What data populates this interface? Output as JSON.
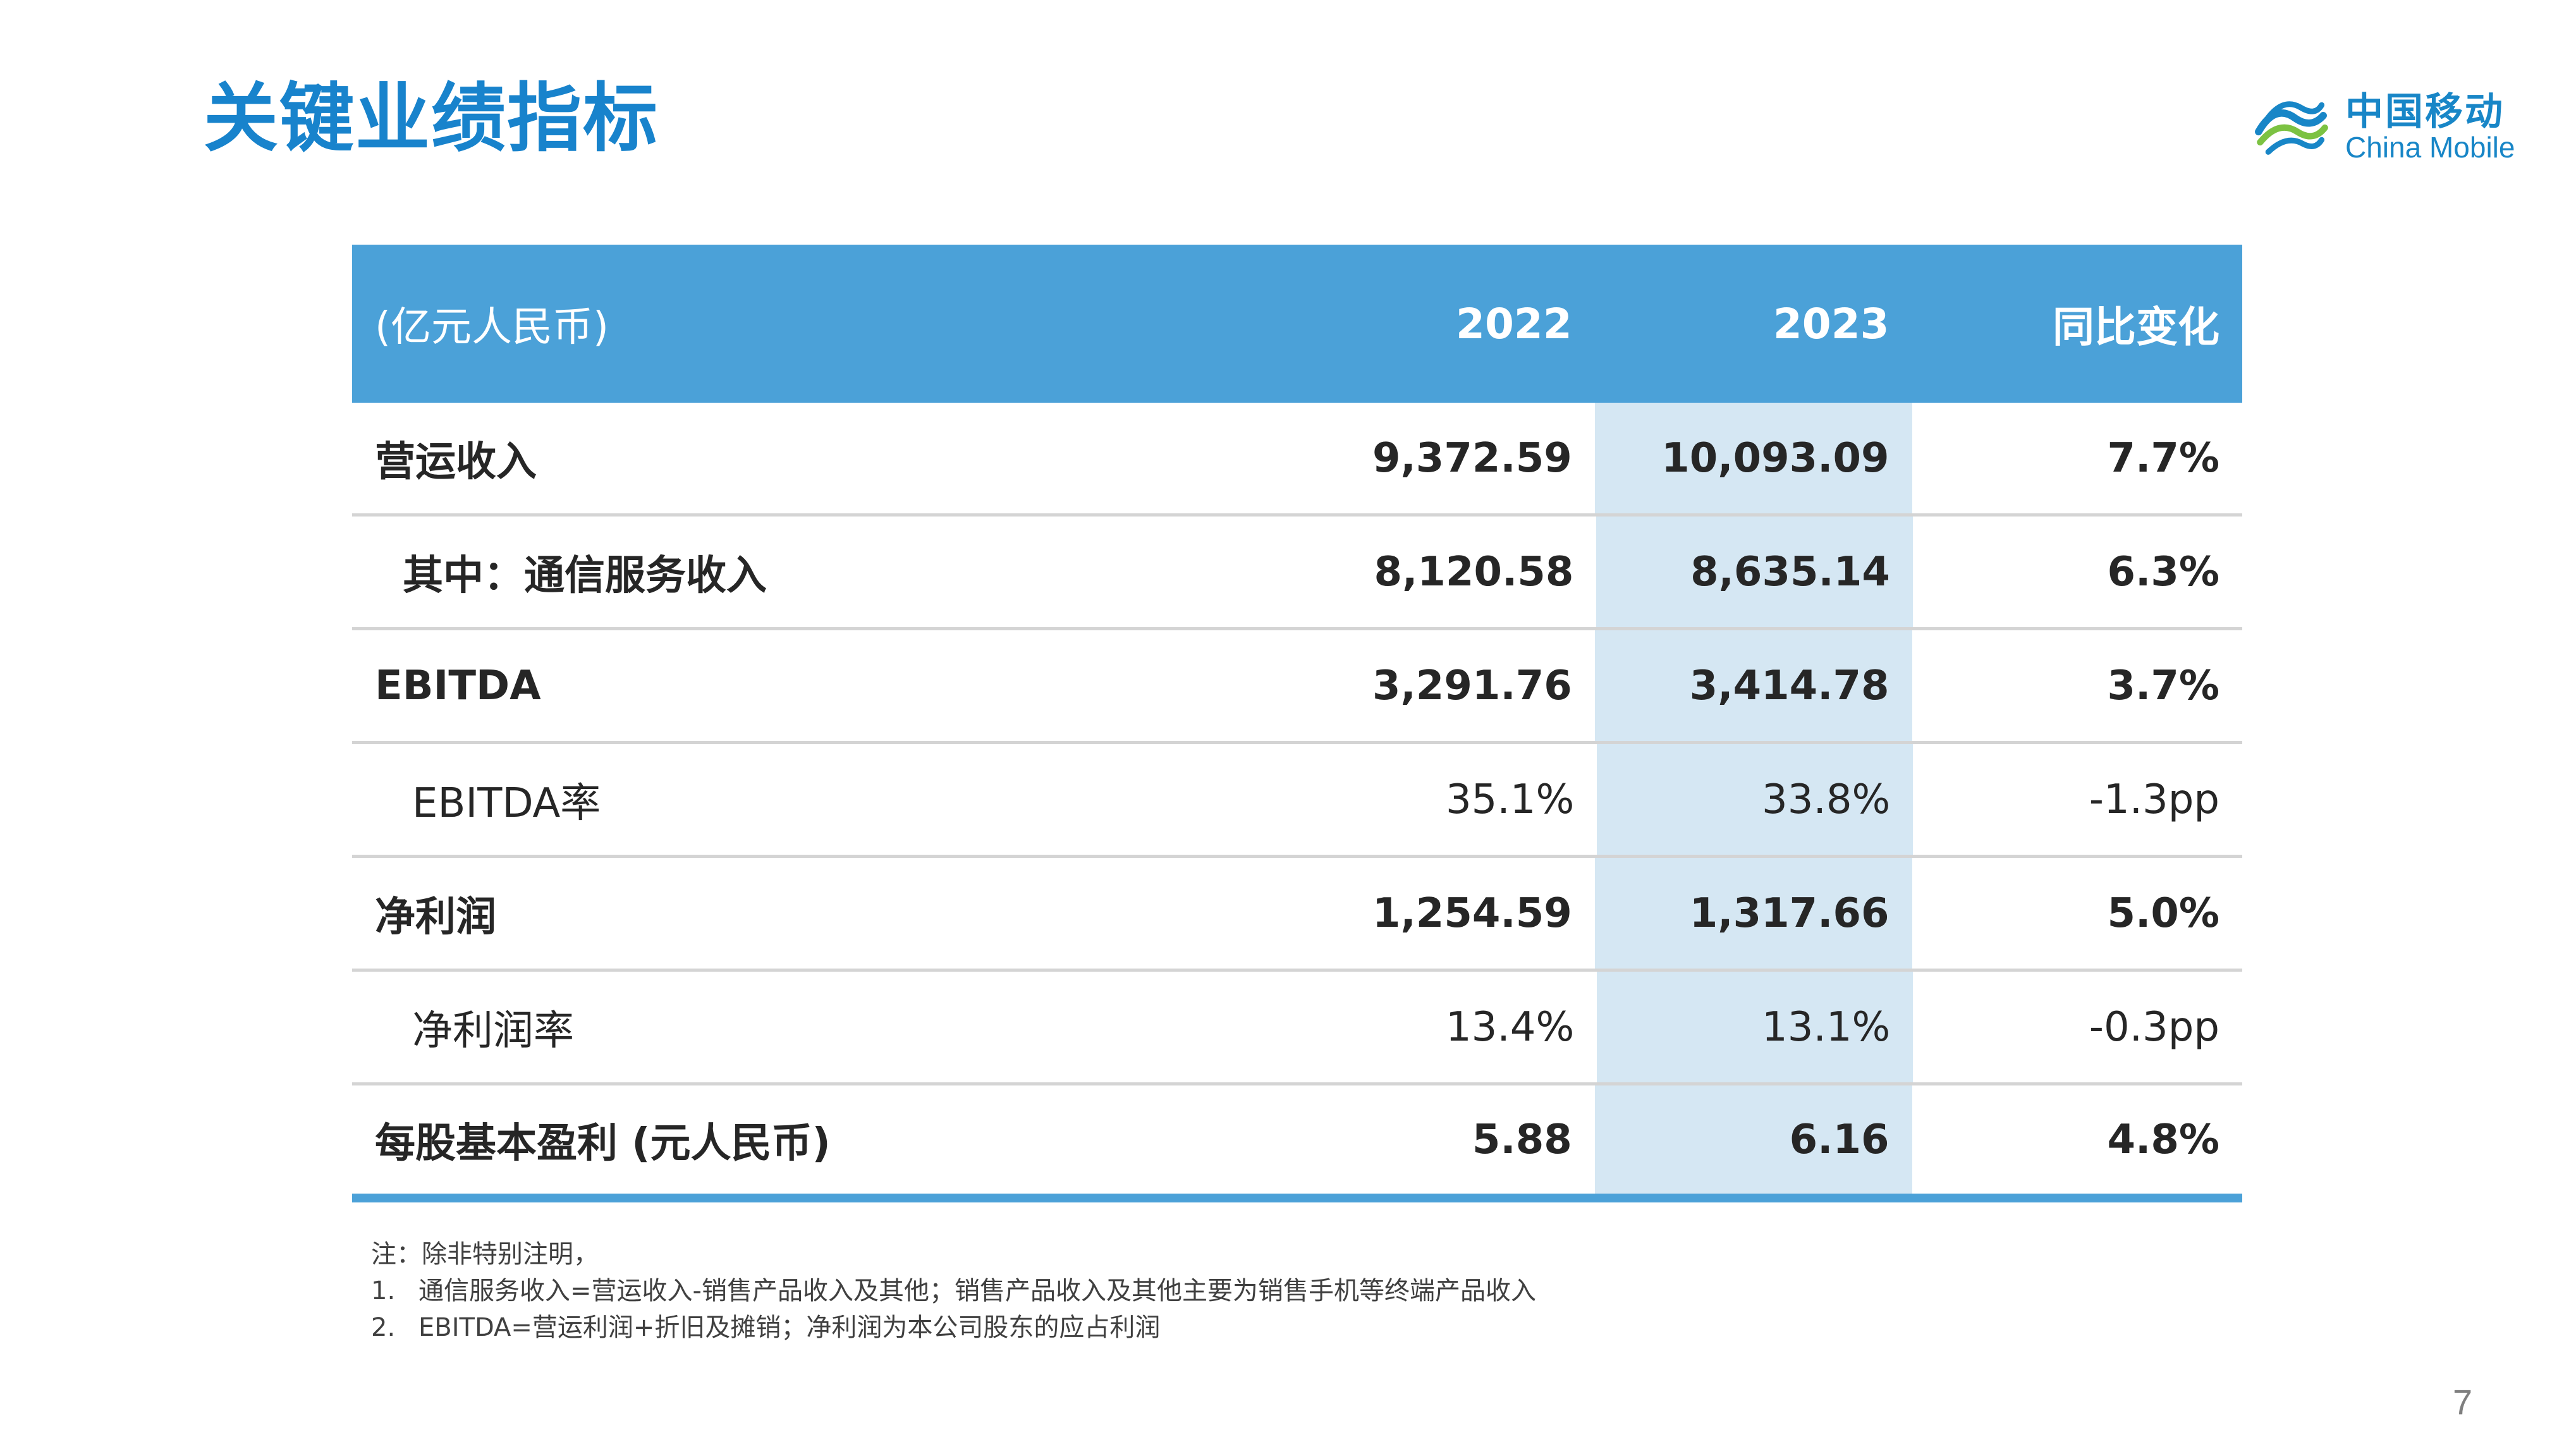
{
  "title": "关键业绩指标",
  "logo": {
    "name_cn": "中国移动",
    "name_en": "China Mobile",
    "brand_color": "#1886c7"
  },
  "table": {
    "header": {
      "unit": "(亿元人民币)",
      "col_2022": "2022",
      "col_2023": "2023",
      "col_change": "同比变化"
    },
    "rows": [
      {
        "label": "营运收入",
        "y2022": "9,372.59",
        "y2023": "10,093.09",
        "change": "7.7%"
      },
      {
        "label": "其中：通信服务收入",
        "y2022": "8,120.58",
        "y2023": "8,635.14",
        "change": "6.3%"
      },
      {
        "label": "EBITDA",
        "y2022": "3,291.76",
        "y2023": "3,414.78",
        "change": "3.7%"
      },
      {
        "label": "EBITDA率",
        "y2022": "35.1%",
        "y2023": "33.8%",
        "change": "-1.3pp"
      },
      {
        "label": "净利润",
        "y2022": "1,254.59",
        "y2023": "1,317.66",
        "change": "5.0%"
      },
      {
        "label": "净利润率",
        "y2022": "13.4%",
        "y2023": "13.1%",
        "change": "-0.3pp"
      },
      {
        "label": "每股基本盈利 (元人民币)",
        "y2022": "5.88",
        "y2023": "6.16",
        "change": "4.8%"
      }
    ],
    "colors": {
      "header_bg": "#4ba1d8",
      "highlight_col_bg": "#d5e7f3"
    }
  },
  "notes": {
    "intro": "注：除非特别注明，",
    "items": [
      {
        "num": "1.",
        "text": "通信服务收入=营运收入-销售产品收入及其他；销售产品收入及其他主要为销售手机等终端产品收入"
      },
      {
        "num": "2.",
        "text": "EBITDA=营运利润+折旧及摊销；净利润为本公司股东的应占利润"
      }
    ]
  },
  "page_number": "7"
}
